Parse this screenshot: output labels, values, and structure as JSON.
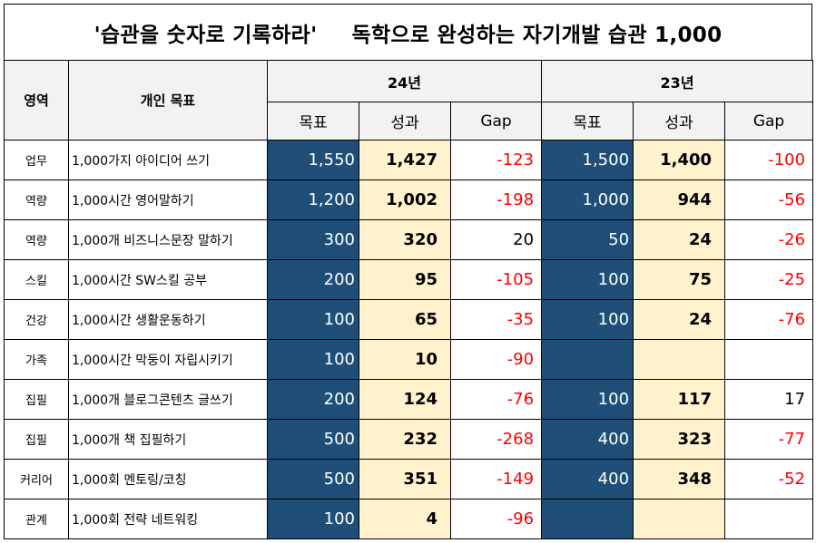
{
  "title": {
    "part1": "'습관을 숫자로 기록하라'",
    "part2": "독학으로 완성하는 자기개발 습관 1,000"
  },
  "headers": {
    "area": "영역",
    "goal": "개인 목표",
    "year1": "24년",
    "year2": "23년",
    "target": "목표",
    "result": "성과",
    "gap": "Gap"
  },
  "rows": [
    {
      "area": "업무",
      "goal": "1,000가지 아이디어 쓰기",
      "t24": "1,550",
      "r24": "1,427",
      "g24": "-123",
      "t23": "1,500",
      "r23": "1,400",
      "g23": "-100"
    },
    {
      "area": "역량",
      "goal": "1,000시간 영어말하기",
      "t24": "1,200",
      "r24": "1,002",
      "g24": "-198",
      "t23": "1,000",
      "r23": "944",
      "g23": "-56"
    },
    {
      "area": "역량",
      "goal": "1,000개 비즈니스문장 말하기",
      "t24": "300",
      "r24": "320",
      "g24": "20",
      "t23": "50",
      "r23": "24",
      "g23": "-26"
    },
    {
      "area": "스킬",
      "goal": "1,000시간 SW스킬 공부",
      "t24": "200",
      "r24": "95",
      "g24": "-105",
      "t23": "100",
      "r23": "75",
      "g23": "-25"
    },
    {
      "area": "건강",
      "goal": "1,000시간 생활운동하기",
      "t24": "100",
      "r24": "65",
      "g24": "-35",
      "t23": "100",
      "r23": "24",
      "g23": "-76"
    },
    {
      "area": "가족",
      "goal": "1,000시간 막둥이 자립시키기",
      "t24": "100",
      "r24": "10",
      "g24": "-90",
      "t23": "",
      "r23": "",
      "g23": ""
    },
    {
      "area": "집필",
      "goal": "1,000개 블로그콘텐츠 글쓰기",
      "t24": "200",
      "r24": "124",
      "g24": "-76",
      "t23": "100",
      "r23": "117",
      "g23": "17"
    },
    {
      "area": "집필",
      "goal": "1,000개 책 집필하기",
      "t24": "500",
      "r24": "232",
      "g24": "-268",
      "t23": "400",
      "r23": "323",
      "g23": "-77"
    },
    {
      "area": "커리어",
      "goal": "1,000회 멘토링/코칭",
      "t24": "500",
      "r24": "351",
      "g24": "-149",
      "t23": "400",
      "r23": "348",
      "g23": "-52"
    },
    {
      "area": "관계",
      "goal": "1,000회 전략 네트워킹",
      "t24": "100",
      "r24": "4",
      "g24": "-96",
      "t23": "",
      "r23": "",
      "g23": ""
    }
  ]
}
